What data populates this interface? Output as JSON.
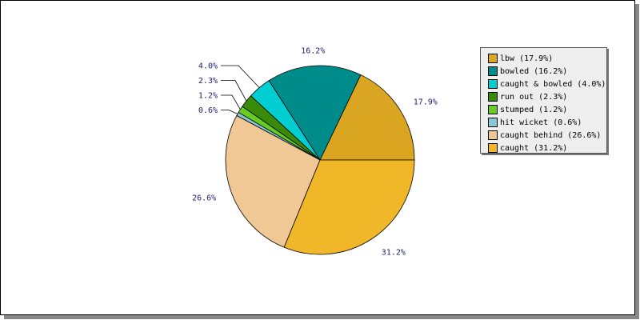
{
  "chart_data": {
    "type": "pie",
    "title": "",
    "slices": [
      {
        "name": "lbw",
        "value": 17.9,
        "label": "17.9%",
        "legend": "lbw (17.9%)",
        "color": "#daa520"
      },
      {
        "name": "bowled",
        "value": 16.2,
        "label": "16.2%",
        "legend": "bowled (16.2%)",
        "color": "#008b8b"
      },
      {
        "name": "caught & bowled",
        "value": 4.0,
        "label": "4.0%",
        "legend": "caught & bowled (4.0%)",
        "color": "#00ced1"
      },
      {
        "name": "run out",
        "value": 2.3,
        "label": "2.3%",
        "legend": "run out (2.3%)",
        "color": "#3a8a0a"
      },
      {
        "name": "stumped",
        "value": 1.2,
        "label": "1.2%",
        "legend": "stumped (1.2%)",
        "color": "#66cc22"
      },
      {
        "name": "hit wicket",
        "value": 0.6,
        "label": "0.6%",
        "legend": "hit wicket (0.6%)",
        "color": "#87c8d8"
      },
      {
        "name": "caught behind",
        "value": 26.6,
        "label": "26.6%",
        "legend": "caught behind (26.6%)",
        "color": "#f0c896"
      },
      {
        "name": "caught",
        "value": 31.2,
        "label": "31.2%",
        "legend": "caught (31.2%)",
        "color": "#f0b828"
      }
    ],
    "legend_position": "top-right"
  }
}
